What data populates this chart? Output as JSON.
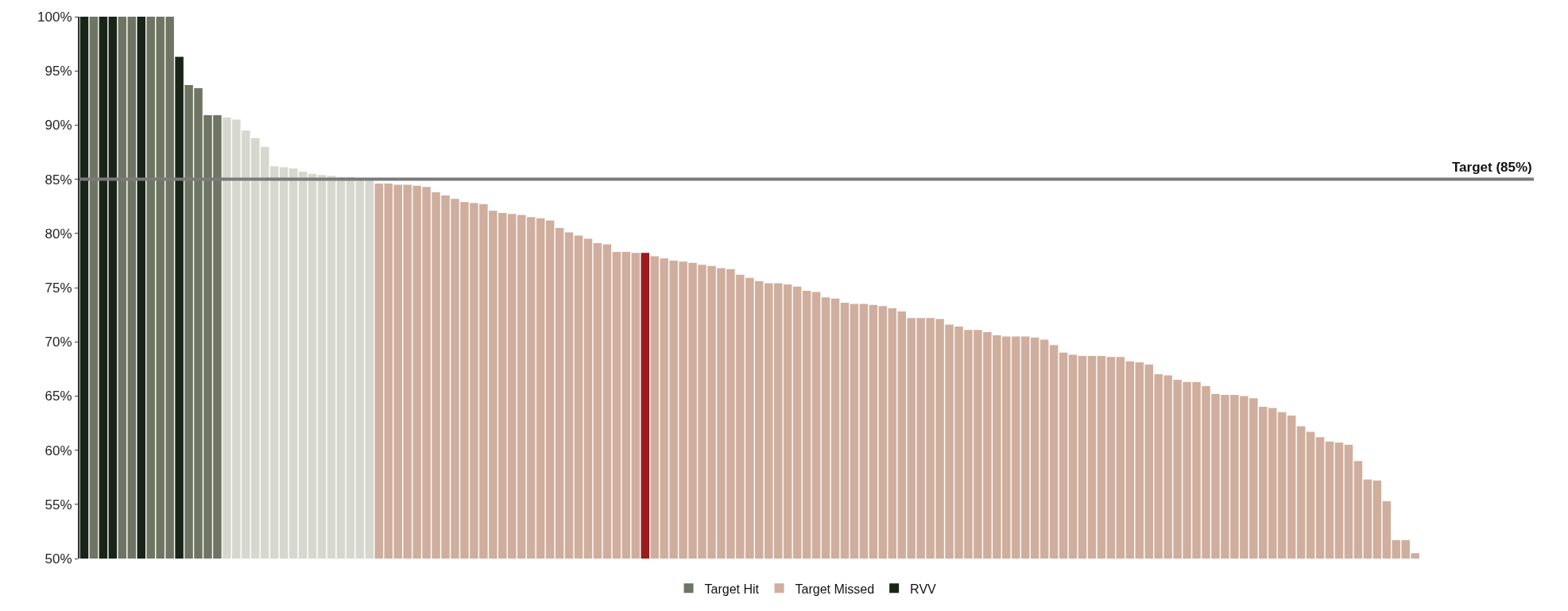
{
  "chart_data": {
    "type": "bar",
    "stacked": true,
    "categories": [
      null,
      null,
      null,
      null,
      null,
      null,
      null,
      null,
      null,
      null,
      null,
      null,
      null,
      null,
      null,
      null,
      null,
      null,
      null,
      null,
      null,
      null,
      null,
      null,
      null,
      null,
      null,
      null,
      null,
      null,
      null,
      null,
      null,
      null,
      null,
      null,
      null,
      null,
      null,
      null,
      null,
      null,
      null,
      null,
      null,
      null,
      null,
      null,
      null,
      null,
      null,
      null,
      null,
      null,
      null,
      null,
      null,
      null,
      null,
      null,
      null,
      null,
      null,
      null,
      null,
      null,
      null,
      null,
      null,
      null,
      null,
      null,
      null,
      null,
      null,
      null,
      null,
      null,
      null,
      null,
      null,
      null,
      null,
      null,
      null,
      null,
      null,
      null,
      null,
      null,
      null,
      null,
      null,
      null,
      null,
      null,
      null,
      null,
      null,
      null,
      null,
      null,
      null,
      null,
      null,
      null,
      null,
      null,
      null,
      null,
      null,
      null,
      null,
      null,
      null,
      null,
      null,
      null,
      null,
      null,
      null,
      null,
      null,
      null,
      null,
      null,
      null,
      null,
      null,
      null,
      null,
      null,
      null,
      null,
      null,
      null,
      null,
      null,
      null,
      null,
      null
    ],
    "series": [
      {
        "name": "Target Hit",
        "color": "#6e7663",
        "colors": [
          null,
          "#6e7663",
          null,
          null,
          "#6e7663",
          "#6e7663",
          null,
          "#6e7663",
          "#6e7663",
          "#6e7663",
          null,
          "#6e7663",
          "#6e7663",
          "#6e7663",
          "#6e7663",
          "#d6d8cf",
          "#d6d8cf",
          "#d6d8cf",
          "#d6d8cf",
          "#d6d8cf",
          "#d6d8cf",
          "#d6d8cf",
          "#d6d8cf",
          "#d6d8cf",
          "#d6d8cf",
          "#d6d8cf",
          "#d6d8cf",
          "#d6d8cf",
          "#d6d8cf",
          "#d6d8cf",
          "#d6d8cf",
          null,
          null,
          null,
          null,
          null,
          null,
          null,
          null,
          null,
          null,
          null,
          null,
          null,
          null,
          null,
          null,
          null,
          null,
          null,
          null,
          null,
          null,
          null,
          null,
          null,
          null,
          null,
          null,
          null,
          null,
          null,
          null,
          null,
          null,
          null,
          null,
          null,
          null,
          null,
          null,
          null,
          null,
          null,
          null,
          null,
          null,
          null,
          null,
          null,
          null,
          null,
          null,
          null,
          null,
          null,
          null,
          null,
          null,
          null,
          null,
          null,
          null,
          null,
          null,
          null,
          null,
          null,
          null,
          null,
          null,
          null,
          null,
          null,
          null,
          null,
          null,
          null,
          null,
          null,
          null,
          null,
          null,
          null,
          null,
          null,
          null,
          null,
          null,
          null,
          null,
          null,
          null,
          null,
          null,
          null,
          null,
          null,
          null,
          null,
          null,
          null,
          null,
          null,
          null,
          null,
          null,
          null,
          null,
          null,
          null
        ],
        "values": [
          null,
          100,
          null,
          null,
          100,
          100,
          null,
          100,
          100,
          100,
          null,
          93.7,
          93.4,
          90.9,
          90.9,
          90.7,
          90.5,
          89.5,
          88.8,
          88.0,
          86.2,
          86.1,
          86.0,
          85.7,
          85.5,
          85.4,
          85.3,
          85.2,
          85.2,
          85.1,
          85.1,
          null,
          null,
          null,
          null,
          null,
          null,
          null,
          null,
          null,
          null,
          null,
          null,
          null,
          null,
          null,
          null,
          null,
          null,
          null,
          null,
          null,
          null,
          null,
          null,
          null,
          null,
          null,
          null,
          null,
          null,
          null,
          null,
          null,
          null,
          null,
          null,
          null,
          null,
          null,
          null,
          null,
          null,
          null,
          null,
          null,
          null,
          null,
          null,
          null,
          null,
          null,
          null,
          null,
          null,
          null,
          null,
          null,
          null,
          null,
          null,
          null,
          null,
          null,
          null,
          null,
          null,
          null,
          null,
          null,
          null,
          null,
          null,
          null,
          null,
          null,
          null,
          null,
          null,
          null,
          null,
          null,
          null,
          null,
          null,
          null,
          null,
          null,
          null,
          null,
          null,
          null,
          null,
          null,
          null,
          null,
          null,
          null,
          null,
          null,
          null,
          null,
          null,
          null,
          null,
          null,
          null,
          null,
          null,
          null,
          null
        ]
      },
      {
        "name": "Target Missed",
        "color": "#cfae9e",
        "values": [
          null,
          null,
          null,
          null,
          null,
          null,
          null,
          null,
          null,
          null,
          null,
          null,
          null,
          null,
          null,
          null,
          null,
          null,
          null,
          null,
          null,
          null,
          null,
          null,
          null,
          null,
          null,
          null,
          null,
          null,
          null,
          84.6,
          84.6,
          84.5,
          84.5,
          84.4,
          84.3,
          83.8,
          83.5,
          83.2,
          82.9,
          82.8,
          82.7,
          82.1,
          81.9,
          81.8,
          81.7,
          81.5,
          81.4,
          81.2,
          80.5,
          80.1,
          79.8,
          79.5,
          79.1,
          79.0,
          78.3,
          78.3,
          78.2,
          null,
          77.9,
          77.7,
          77.5,
          77.4,
          77.3,
          77.1,
          77.0,
          76.8,
          76.7,
          76.2,
          75.9,
          75.6,
          75.4,
          75.4,
          75.3,
          75.1,
          74.7,
          74.6,
          74.1,
          74.0,
          73.6,
          73.5,
          73.5,
          73.4,
          73.3,
          73.1,
          72.8,
          72.2,
          72.2,
          72.2,
          72.1,
          71.6,
          71.4,
          71.1,
          71.1,
          70.9,
          70.6,
          70.5,
          70.5,
          70.5,
          70.4,
          70.2,
          69.7,
          69.0,
          68.8,
          68.7,
          68.7,
          68.7,
          68.6,
          68.6,
          68.2,
          68.1,
          67.9,
          67.0,
          66.9,
          66.5,
          66.3,
          66.3,
          65.9,
          65.2,
          65.1,
          65.1,
          65.0,
          64.8,
          64.0,
          63.9,
          63.5,
          63.2,
          62.2,
          61.7,
          61.2,
          60.8,
          60.7,
          60.5,
          59.0,
          57.3,
          57.2,
          55.3,
          51.7,
          51.7,
          50.5
        ]
      },
      {
        "name": "RVV",
        "color": "#1a2419",
        "colors": [
          "#1a2419",
          null,
          "#1a2419",
          "#1a2419",
          null,
          null,
          "#1a2419",
          null,
          null,
          null,
          "#1a2419",
          null,
          null,
          null,
          null,
          null,
          null,
          null,
          null,
          null,
          null,
          null,
          null,
          null,
          null,
          null,
          null,
          null,
          null,
          null,
          null,
          null,
          null,
          null,
          null,
          null,
          null,
          null,
          null,
          null,
          null,
          null,
          null,
          null,
          null,
          null,
          null,
          null,
          null,
          null,
          null,
          null,
          null,
          null,
          null,
          null,
          null,
          null,
          null,
          "#9b1b1e",
          null,
          null,
          null,
          null,
          null,
          null,
          null,
          null,
          null,
          null,
          null,
          null,
          null,
          null,
          null,
          null,
          null,
          null,
          null,
          null,
          null,
          null,
          null,
          null,
          null,
          null,
          null,
          null,
          null,
          null,
          null,
          null,
          null,
          null,
          null,
          null,
          null,
          null,
          null,
          null,
          null,
          null,
          null,
          null,
          null,
          null,
          null,
          null,
          null,
          null,
          null,
          null,
          null,
          null,
          null,
          null,
          null,
          null,
          null,
          null,
          null,
          null,
          null,
          null,
          null,
          null,
          null,
          null,
          null,
          null,
          null,
          null,
          null,
          null,
          null,
          null,
          null,
          null,
          null,
          null,
          null
        ],
        "values": [
          100,
          null,
          100,
          100,
          null,
          null,
          100,
          null,
          null,
          null,
          96.3,
          null,
          null,
          null,
          null,
          null,
          null,
          null,
          null,
          null,
          null,
          null,
          null,
          null,
          null,
          null,
          null,
          null,
          null,
          null,
          null,
          null,
          null,
          null,
          null,
          null,
          null,
          null,
          null,
          null,
          null,
          null,
          null,
          null,
          null,
          null,
          null,
          null,
          null,
          null,
          null,
          null,
          null,
          null,
          null,
          null,
          null,
          null,
          null,
          78.2,
          null,
          null,
          null,
          null,
          null,
          null,
          null,
          null,
          null,
          null,
          null,
          null,
          null,
          null,
          null,
          null,
          null,
          null,
          null,
          null,
          null,
          null,
          null,
          null,
          null,
          null,
          null,
          null,
          null,
          null,
          null,
          null,
          null,
          null,
          null,
          null,
          null,
          null,
          null,
          null,
          null,
          null,
          null,
          null,
          null,
          null,
          null,
          null,
          null,
          null,
          null,
          null,
          null,
          null,
          null,
          null,
          null,
          null,
          null,
          null,
          null,
          null,
          null,
          null,
          null,
          null,
          null,
          null,
          null,
          null,
          null,
          null,
          null,
          null,
          null,
          null,
          null,
          null,
          null,
          null,
          null
        ]
      }
    ],
    "ylim": [
      50,
      100
    ],
    "yticks": [
      {
        "value": 50,
        "label": "50%"
      },
      {
        "value": 55,
        "label": "55%"
      },
      {
        "value": 60,
        "label": "60%"
      },
      {
        "value": 65,
        "label": "65%"
      },
      {
        "value": 70,
        "label": "70%"
      },
      {
        "value": 75,
        "label": "75%"
      },
      {
        "value": 80,
        "label": "80%"
      },
      {
        "value": 85,
        "label": "85%"
      },
      {
        "value": 90,
        "label": "90%"
      },
      {
        "value": 95,
        "label": "95%"
      },
      {
        "value": 100,
        "label": "100%"
      }
    ],
    "ref_lines": [
      {
        "axis": "y",
        "value": 85,
        "label": "Target (85%)",
        "color": "#7a7a7a"
      }
    ],
    "legend": "bottom"
  }
}
